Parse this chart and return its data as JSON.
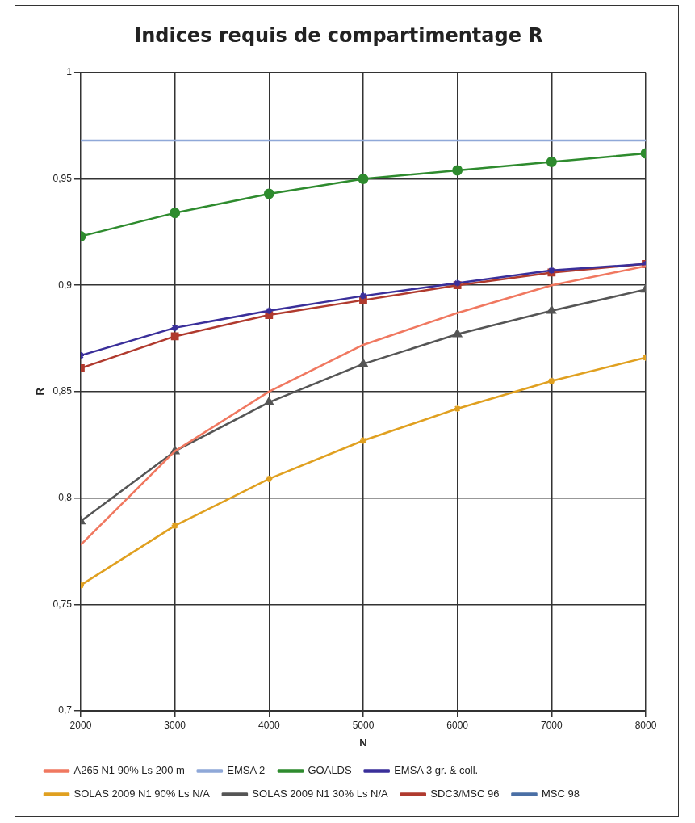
{
  "chart_data": {
    "type": "line",
    "title": "Indices requis de compartimentage R",
    "xlabel": "N",
    "ylabel": "R",
    "x": [
      2000,
      3000,
      4000,
      5000,
      6000,
      7000,
      8000
    ],
    "xlim": [
      2000,
      8000
    ],
    "xticks": [
      2000,
      3000,
      4000,
      5000,
      6000,
      7000,
      8000
    ],
    "ylim": [
      0.7,
      1
    ],
    "yticks": [
      {
        "value": 0.7,
        "label": "0,7"
      },
      {
        "value": 0.75,
        "label": "0,75"
      },
      {
        "value": 0.8,
        "label": "0,8"
      },
      {
        "value": 0.85,
        "label": "0,85"
      },
      {
        "value": 0.9,
        "label": "0,9"
      },
      {
        "value": 0.95,
        "label": "0,95"
      },
      {
        "value": 1,
        "label": "1"
      }
    ],
    "grid": true,
    "legend": "bottom",
    "series": [
      {
        "name": "MSC 98",
        "color": "#4a6fa5",
        "marker": "diamond",
        "values": [
          null,
          null,
          null,
          null,
          null,
          null,
          null
        ]
      },
      {
        "name": "SDC3/MSC 96",
        "color": "#b03a2e",
        "marker": "square",
        "values": [
          0.861,
          0.876,
          0.886,
          0.893,
          0.9,
          0.906,
          0.91
        ]
      },
      {
        "name": "SOLAS 2009 N1 30% Ls N/A",
        "color": "#555555",
        "marker": "triangle",
        "values": [
          0.789,
          0.822,
          0.845,
          0.863,
          0.877,
          0.888,
          0.898
        ]
      },
      {
        "name": "SOLAS 2009 N1 90% Ls N/A",
        "color": "#e0a020",
        "marker": "cross",
        "values": [
          0.759,
          0.787,
          0.809,
          0.827,
          0.842,
          0.855,
          0.866
        ]
      },
      {
        "name": "EMSA 3 gr. & coll.",
        "color": "#3a2f9a",
        "marker": "cross",
        "values": [
          0.867,
          0.88,
          0.888,
          0.895,
          0.901,
          0.907,
          0.91
        ]
      },
      {
        "name": "GOALDS",
        "color": "#2e8b2e",
        "marker": "circle",
        "values": [
          0.923,
          0.934,
          0.943,
          0.95,
          0.954,
          0.958,
          0.962
        ]
      },
      {
        "name": "EMSA 2",
        "color": "#8fa8d8",
        "marker": "none",
        "values": [
          0.968,
          0.968,
          0.968,
          0.968,
          0.968,
          0.968,
          0.968
        ]
      },
      {
        "name": "A265 N1 90% Ls 200 m",
        "color": "#f07860",
        "marker": "none",
        "values": [
          0.778,
          0.822,
          0.85,
          0.872,
          0.887,
          0.9,
          0.909
        ]
      }
    ]
  }
}
